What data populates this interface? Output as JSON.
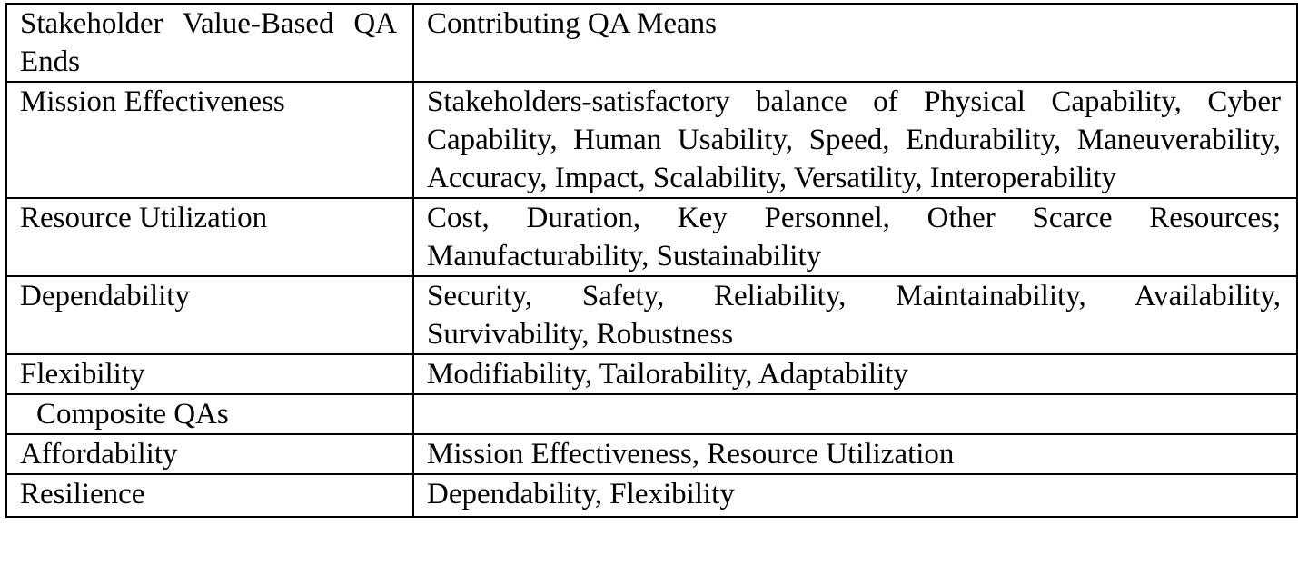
{
  "header": {
    "left": "Stakeholder Value-Based QA Ends",
    "right": "Contributing QA Means"
  },
  "rows": [
    {
      "end": "Mission Effectiveness",
      "means": "Stakeholders-satisfactory balance of Physical Capability, Cyber Capability, Human Usability, Speed, Endurability, Maneuverability, Accuracy, Impact, Scalability, Versatility, Interoperability"
    },
    {
      "end": "Resource Utilization",
      "means": "Cost, Duration, Key Personnel, Other Scarce Resources; Manufacturability, Sustainability"
    },
    {
      "end": "Dependability",
      "means": "Security, Safety, Reliability, Maintainability, Availability, Survivability, Robustness"
    },
    {
      "end": "Flexibility",
      "means": "Modifiability, Tailorability, Adaptability"
    }
  ],
  "composite_heading": "Composite QAs",
  "composite_rows": [
    {
      "end": "Affordability",
      "means": "Mission Effectiveness, Resource Utilization"
    },
    {
      "end": "Resilience",
      "means": "Dependability, Flexibility"
    }
  ]
}
